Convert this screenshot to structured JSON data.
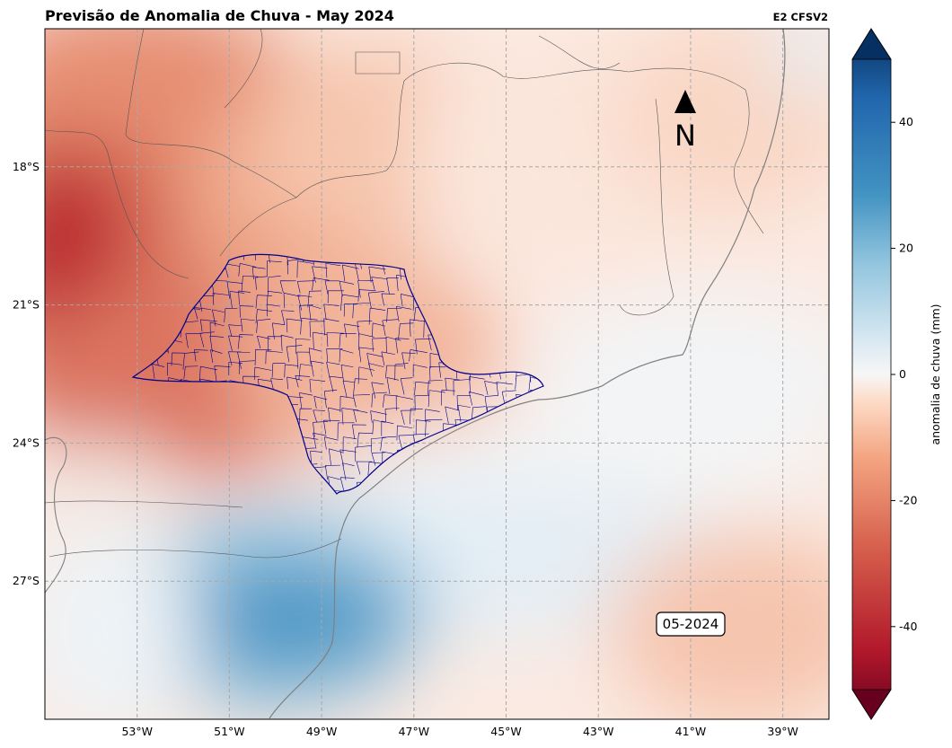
{
  "title": "Previsão de Anomalia de Chuva - May 2024",
  "subtitle": "E2 CFSV2",
  "north_label": "N",
  "date_label": "05-2024",
  "colorbar": {
    "label": "anomalia de chuva (mm)",
    "ticks": [
      40,
      20,
      0,
      -20,
      -40
    ],
    "range": [
      -50,
      50
    ],
    "colormap": "RdBu",
    "extend": "both"
  },
  "axes": {
    "lon_ticks": [
      "53°W",
      "51°W",
      "49°W",
      "47°W",
      "45°W",
      "43°W",
      "41°W",
      "39°W"
    ],
    "lat_ticks": [
      "18°S",
      "21°S",
      "24°S",
      "27°S"
    ],
    "lon_range": [
      -55,
      -38
    ],
    "lat_range": [
      -15,
      -30
    ],
    "grid": true
  },
  "colors": {
    "strong_dry": "#b2182b",
    "dry": "#ef8a62",
    "light_dry": "#fddbc7",
    "neutral": "#f7f7f7",
    "light_wet": "#d1e5f0",
    "wet": "#4393c3",
    "municipality_outline": "#00008b",
    "coast": "#808080"
  }
}
